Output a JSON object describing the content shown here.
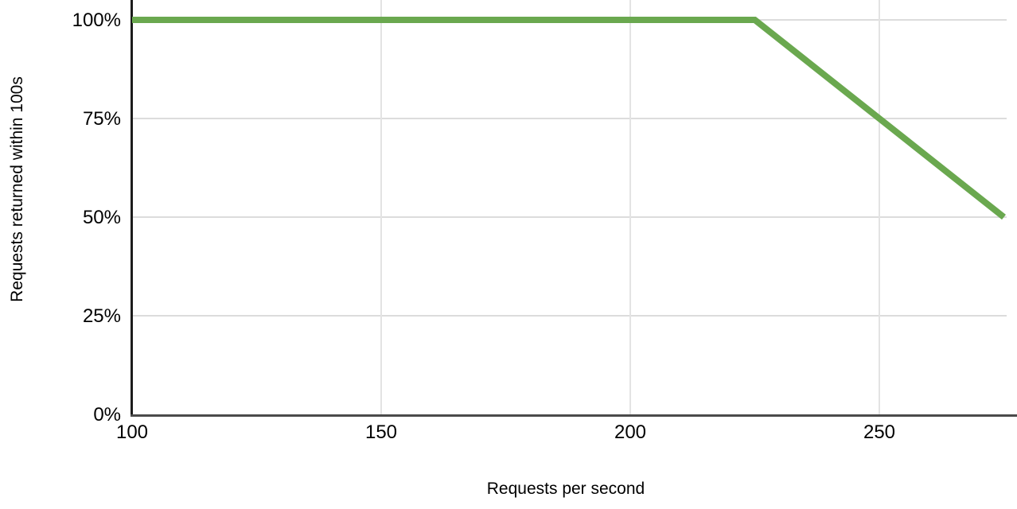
{
  "chart": {
    "background": "#ffffff",
    "line_color": "#6aa84f",
    "h_gridline_color": "#dcdcdc",
    "v_gridline_color": "#e3e3e3",
    "y_axis_color": "#1c1c1c",
    "x_axis_color": "#4a4a4a",
    "text_color": "#000000",
    "y_tick_labels": [
      "100%",
      "75%",
      "50%",
      "25%",
      "0%"
    ],
    "x_tick_labels": [
      "100",
      "150",
      "200",
      "250"
    ]
  },
  "chart_data": {
    "type": "line",
    "title": "",
    "xlabel": "Requests per second",
    "ylabel": "Requests returned within 100s",
    "x": [
      100,
      150,
      200,
      225,
      250,
      275
    ],
    "y": [
      100,
      100,
      100,
      100,
      75,
      50
    ],
    "x_ticks": [
      100,
      150,
      200,
      250
    ],
    "y_ticks": [
      100,
      75,
      50,
      25,
      0
    ],
    "xlim": [
      100,
      276
    ],
    "ylim": [
      0,
      100
    ],
    "grid": true,
    "legend": "none",
    "series": [
      {
        "name": "Requests returned within 100s",
        "color": "#6aa84f",
        "points": [
          {
            "x": 100,
            "y": 100
          },
          {
            "x": 150,
            "y": 100
          },
          {
            "x": 200,
            "y": 100
          },
          {
            "x": 225,
            "y": 100
          },
          {
            "x": 250,
            "y": 75
          },
          {
            "x": 275,
            "y": 50
          }
        ]
      }
    ]
  }
}
